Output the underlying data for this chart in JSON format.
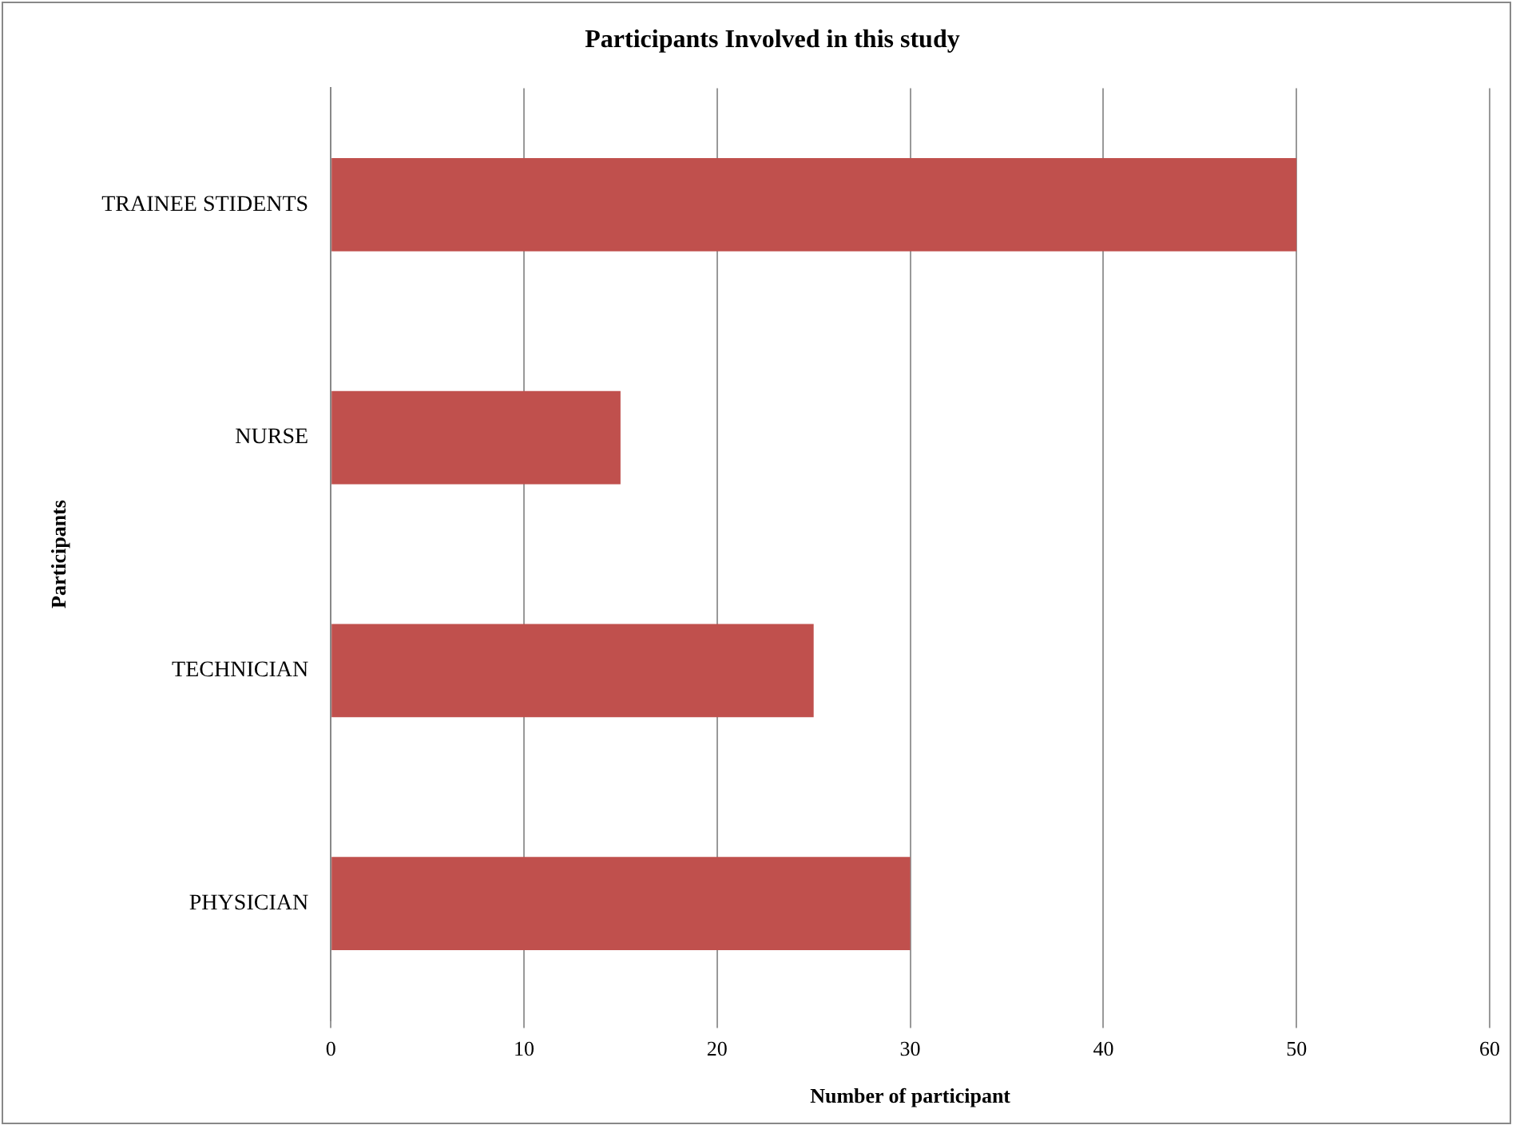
{
  "chart_data": {
    "type": "bar",
    "orientation": "horizontal",
    "title": "Participants Involved in this study",
    "xlabel": "Number of participant",
    "ylabel": "Participants",
    "categories": [
      "TRAINEE STIDENTS",
      "NURSE",
      "TECHNICIAN",
      "PHYSICIAN"
    ],
    "values": [
      50,
      15,
      25,
      30
    ],
    "color": "#c0504d",
    "xlim": [
      0,
      60
    ],
    "xticks": [
      0,
      10,
      20,
      30,
      40,
      50,
      60
    ],
    "grid": "x",
    "legend": false
  }
}
